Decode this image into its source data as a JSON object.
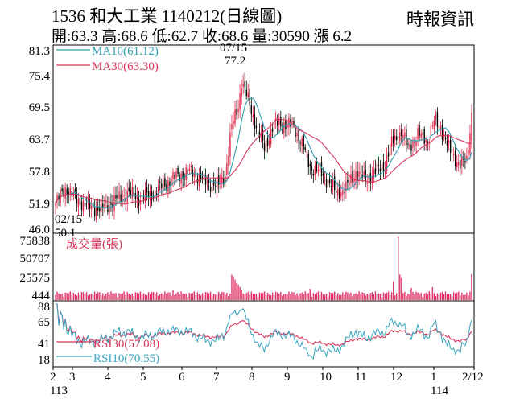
{
  "header": {
    "title": "1536  和大工業 1140212(日線圖)",
    "ohlc": "開:63.3 高:68.6 低:62.7 收:68.6 量:30590 漲 6.2",
    "source": "時報資訊"
  },
  "colors": {
    "up": "#e0284a",
    "down": "#000000",
    "ma10": "#2f9fb0",
    "ma30": "#d6365a",
    "volume": "#e0386a",
    "rsi30": "#d6365a",
    "rsi10": "#3aa6c0",
    "frame": "#000000"
  },
  "chart_data": [
    {
      "type": "candlestick",
      "panel": "price",
      "ylim": [
        46.0,
        81.3
      ],
      "yticks": [
        "81.3",
        "75.4",
        "69.5",
        "63.7",
        "57.8",
        "51.9",
        "46.0"
      ],
      "last_bar": {
        "open": 63.3,
        "high": 68.6,
        "low": 62.7,
        "close": 68.6
      },
      "series": [
        {
          "name": "MA10",
          "legend": "MA10(61.12)",
          "last": 61.12
        },
        {
          "name": "MA30",
          "legend": "MA30(63.30)",
          "last": 63.3
        }
      ],
      "annotations": [
        {
          "label": "07/15",
          "value": "77.2",
          "kind": "high"
        },
        {
          "label": "02/15",
          "value": "50.1",
          "kind": "low"
        }
      ]
    },
    {
      "type": "bar",
      "panel": "volume",
      "label": "成交量(張)",
      "yticks": [
        "75838",
        "50707",
        "25575",
        "444"
      ],
      "ylim": [
        444,
        75838
      ],
      "last": 30590
    },
    {
      "type": "line",
      "panel": "rsi",
      "yticks": [
        "88",
        "65",
        "41",
        "18"
      ],
      "ylim": [
        18,
        88
      ],
      "series": [
        {
          "name": "RSI30",
          "legend": "RSI30(57.08)",
          "last": 57.08
        },
        {
          "name": "RSI10",
          "legend": "RSI10(70.55)",
          "last": 70.55
        }
      ]
    }
  ],
  "xaxis": {
    "month_labels": [
      "2",
      "3",
      "4",
      "5",
      "6",
      "7",
      "8",
      "9",
      "10",
      "11",
      "12",
      "1",
      "2/12"
    ],
    "year_labels": [
      "113",
      "114"
    ]
  }
}
